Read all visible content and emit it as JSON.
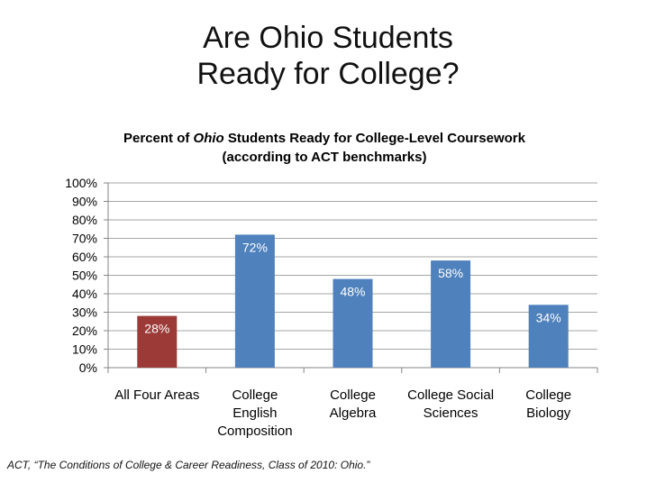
{
  "slide": {
    "title_line1": "Are Ohio Students",
    "title_line2": "Ready for College?"
  },
  "chart_data": {
    "type": "bar",
    "title_prefix": "Percent of ",
    "title_italic": "Ohio",
    "title_suffix": " Students Ready for College-Level Coursework",
    "subtitle": "(according to ACT benchmarks)",
    "categories": [
      [
        "All Four Areas"
      ],
      [
        "College",
        "English",
        "Composition"
      ],
      [
        "College",
        "Algebra"
      ],
      [
        "College Social",
        "Sciences"
      ],
      [
        "College",
        "Biology"
      ]
    ],
    "values": [
      28,
      72,
      48,
      58,
      34
    ],
    "value_labels": [
      "28%",
      "72%",
      "48%",
      "58%",
      "34%"
    ],
    "bar_colors": [
      "#9b3a37",
      "#4f81bd",
      "#4f81bd",
      "#4f81bd",
      "#4f81bd"
    ],
    "label_color": "#ffffff",
    "ylim": [
      0,
      100
    ],
    "yticks": [
      "0%",
      "10%",
      "20%",
      "30%",
      "40%",
      "50%",
      "60%",
      "70%",
      "80%",
      "90%",
      "100%"
    ],
    "grid": true,
    "legend": "none"
  },
  "citation": "ACT, “The Conditions of College & Career Readiness, Class of 2010: Ohio.”"
}
